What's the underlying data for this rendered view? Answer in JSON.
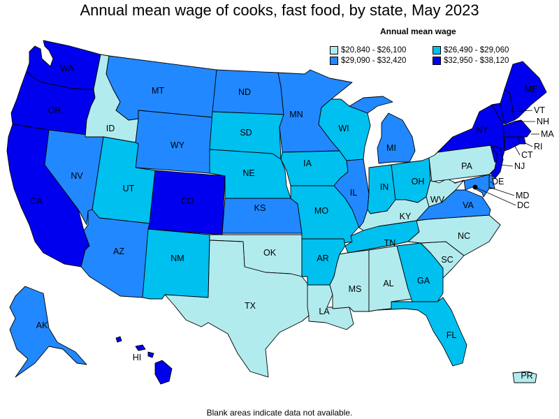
{
  "title": "Annual mean wage of cooks, fast food, by state, May 2023",
  "legend": {
    "title": "Annual mean wage",
    "bins": [
      {
        "label": "$20,840 - $26,100",
        "color": "#b2ebee"
      },
      {
        "label": "$26,490 - $29,060",
        "color": "#00c0f0"
      },
      {
        "label": "$29,090 - $32,420",
        "color": "#2288ff"
      },
      {
        "label": "$32,950 - $38,120",
        "color": "#0000ee"
      }
    ]
  },
  "footnote": "Blank areas indicate data not available.",
  "chart_data": {
    "type": "choropleth",
    "measure": "Annual mean wage",
    "bins": [
      "$20,840 - $26,100",
      "$26,490 - $29,060",
      "$29,090 - $32,420",
      "$32,950 - $38,120"
    ],
    "states": {
      "WA": 3,
      "OR": 3,
      "CA": 3,
      "NV": 2,
      "ID": 0,
      "MT": 2,
      "WY": 2,
      "UT": 1,
      "AZ": 2,
      "CO": 3,
      "NM": 1,
      "ND": 2,
      "SD": 1,
      "NE": 1,
      "KS": 2,
      "OK": 0,
      "TX": 0,
      "MN": 2,
      "IA": 1,
      "MO": 1,
      "AR": 1,
      "LA": 0,
      "WI": 1,
      "IL": 2,
      "MI": 2,
      "IN": 1,
      "OH": 1,
      "KY": 0,
      "TN": 1,
      "MS": 0,
      "AL": 0,
      "GA": 1,
      "FL": 1,
      "SC": 0,
      "NC": 0,
      "VA": 2,
      "WV": 0,
      "PA": 0,
      "NY": 3,
      "VT": 3,
      "NH": 3,
      "ME": 3,
      "MA": 3,
      "RI": 3,
      "CT": 3,
      "NJ": 3,
      "DE": 2,
      "MD": 2,
      "DC": 3,
      "AK": 2,
      "HI": 3,
      "PR": 0
    }
  }
}
